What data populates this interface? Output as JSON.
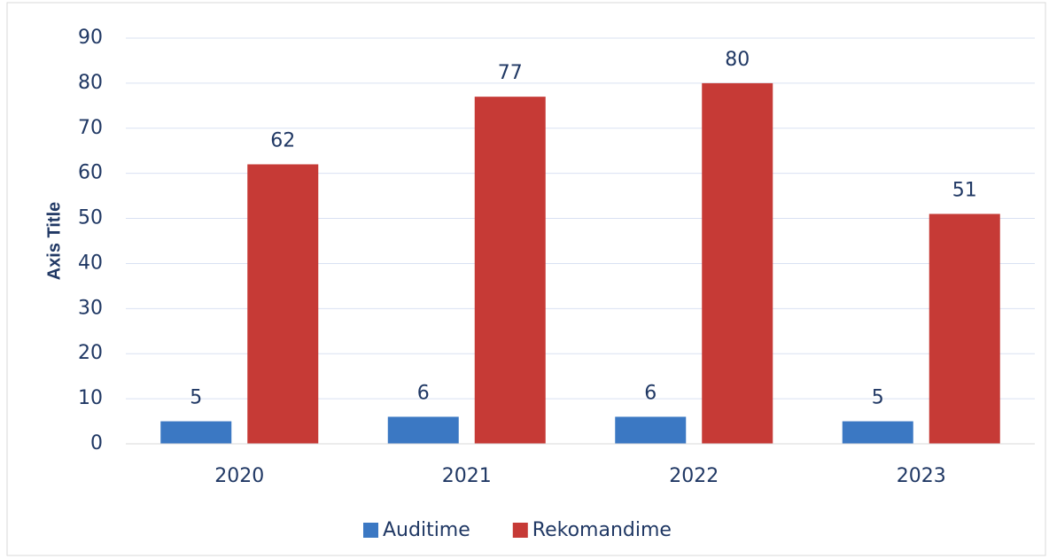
{
  "chart_data": {
    "type": "bar",
    "y_axis_title": "Axis Title",
    "categories": [
      "2020",
      "2021",
      "2022",
      "2023"
    ],
    "series": [
      {
        "name": "Auditime",
        "color": "#3b78c3",
        "values": [
          5,
          6,
          6,
          5
        ]
      },
      {
        "name": "Rekomandime",
        "color": "#c63a36",
        "values": [
          62,
          77,
          80,
          51
        ]
      }
    ],
    "ylim": [
      0,
      90
    ],
    "yticks": [
      0,
      10,
      20,
      30,
      40,
      50,
      60,
      70,
      80,
      90
    ],
    "grid": true,
    "legend": "bottom"
  }
}
